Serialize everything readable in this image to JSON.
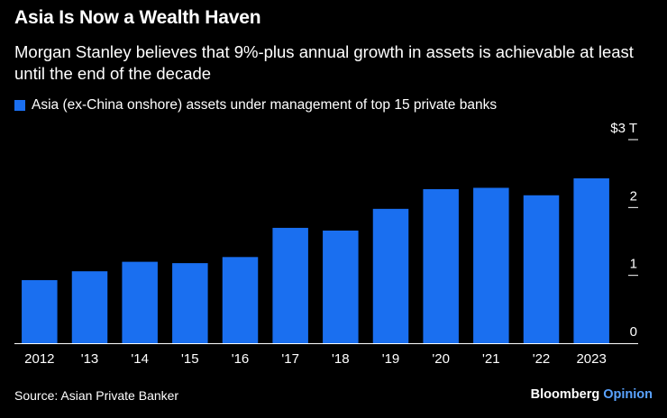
{
  "title": "Asia Is Now a Wealth Haven",
  "subtitle": "Morgan Stanley believes that 9%-plus annual growth in assets is achievable at least until the end of the decade",
  "source": "Source: Asian Private Banker",
  "brand": {
    "name": "Bloomberg",
    "accent": "Opinion"
  },
  "colors": {
    "bar": "#1a6ff0",
    "background": "#000000",
    "text": "#ffffff",
    "brand_accent": "#5aa3ff"
  },
  "chart_data": {
    "type": "bar",
    "categories": [
      "2012",
      "'13",
      "'14",
      "'15",
      "'16",
      "'17",
      "'18",
      "'19",
      "'20",
      "'21",
      "'22",
      "2023"
    ],
    "series": [
      {
        "name": "Asia (ex-China onshore) assets under management of top 15 private banks",
        "values": [
          0.93,
          1.06,
          1.2,
          1.18,
          1.27,
          1.7,
          1.66,
          1.98,
          2.27,
          2.29,
          2.18,
          2.43
        ]
      }
    ],
    "y_ticks": [
      {
        "value": 0,
        "label": "0"
      },
      {
        "value": 1,
        "label": "1"
      },
      {
        "value": 2,
        "label": "2"
      },
      {
        "value": 3,
        "label": "$3 T"
      }
    ],
    "ylim": [
      0,
      3
    ],
    "legend_position": "top-left",
    "y_axis_position": "right",
    "grid": false
  }
}
